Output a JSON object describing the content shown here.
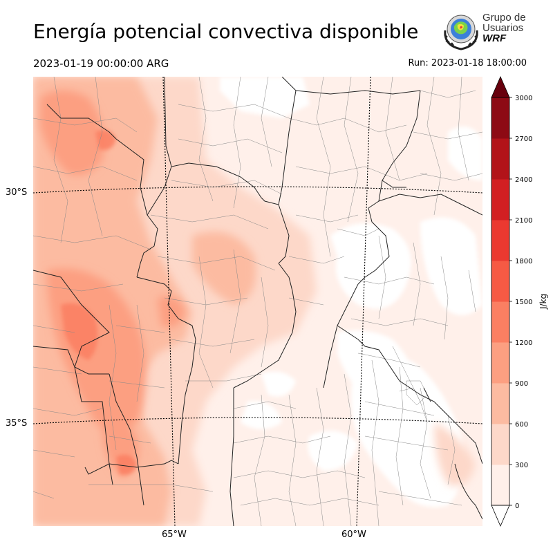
{
  "header": {
    "title": "Energía potencial convectiva disponible",
    "valid_time": "2023-01-19 00:00:00 ARG",
    "run_time": "Run: 2023-01-18 18:00:00"
  },
  "logo": {
    "line1": "Grupo de",
    "line2": "Usuarios",
    "line3": "WRF"
  },
  "map": {
    "lat_labels": [
      {
        "text": "30°S",
        "lat": -30
      },
      {
        "text": "35°S",
        "lat": -35
      }
    ],
    "lon_labels": [
      {
        "text": "65°W",
        "lon": -65
      },
      {
        "text": "60°W",
        "lon": -60
      }
    ]
  },
  "colorbar": {
    "unit": "J/kg",
    "ticks": [
      "0",
      "300",
      "600",
      "900",
      "1200",
      "1500",
      "1800",
      "2100",
      "2400",
      "2700",
      "3000"
    ],
    "colors": [
      "#fff0ea",
      "#fdd8c9",
      "#fcbba1",
      "#fc9f81",
      "#fb7f62",
      "#f65a44",
      "#eb3930",
      "#d21f22",
      "#b21319",
      "#8d0a14",
      "#67000d"
    ]
  }
}
